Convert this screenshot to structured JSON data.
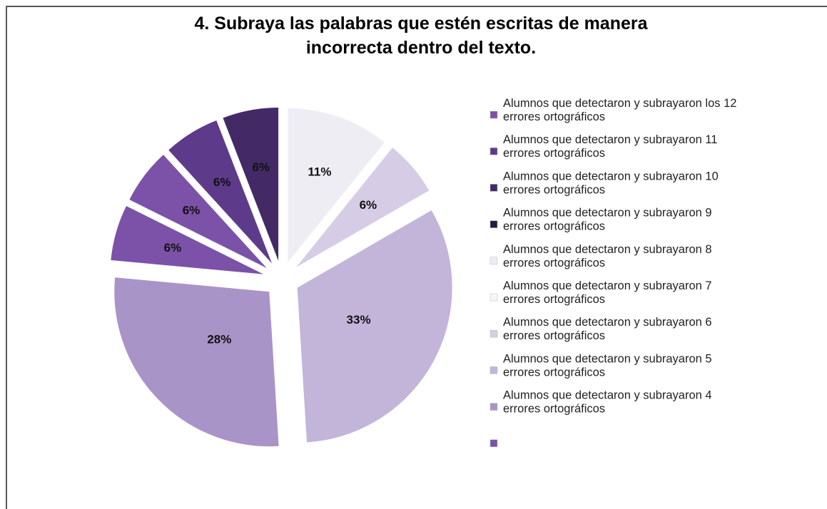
{
  "chart_data": {
    "type": "pie",
    "title": "4. Subraya las palabras que estén escritas de manera incorrecta dentro del texto.",
    "categories": [
      "Alumnos que detectaron y subrayaron los 12 errores ortográficos",
      "Alumnos que detectaron y subrayaron 11 errores ortográficos",
      "Alumnos que detectaron y subrayaron 10 errores ortográficos",
      "Alumnos que detectaron y subrayaron 9 errores ortográficos",
      "Alumnos que detectaron y subrayaron 8 errores ortográficos",
      "Alumnos que detectaron y subrayaron 7 errores ortográficos",
      "Alumnos que detectaron y subrayaron 6 errores ortográficos",
      "Alumnos que detectaron y subrayaron 5 errores ortográficos",
      "Alumnos que detectaron y subrayaron 4 errores ortográficos",
      null
    ],
    "values": [
      6,
      6,
      6,
      0,
      11,
      0,
      6,
      33,
      28,
      6
    ],
    "value_labels": [
      "6%",
      "6%",
      "6%",
      null,
      "11%",
      null,
      "6%",
      "33%",
      "28%",
      "6%"
    ],
    "colors": [
      "#7b52a8",
      "#5e3b8a",
      "#432a66",
      "#2a1a3f",
      "#eeedf3",
      "#f6f6f8",
      "#d6cce5",
      "#c3b4d9",
      "#a994c8",
      "#7b52a8"
    ],
    "legend": "right"
  }
}
